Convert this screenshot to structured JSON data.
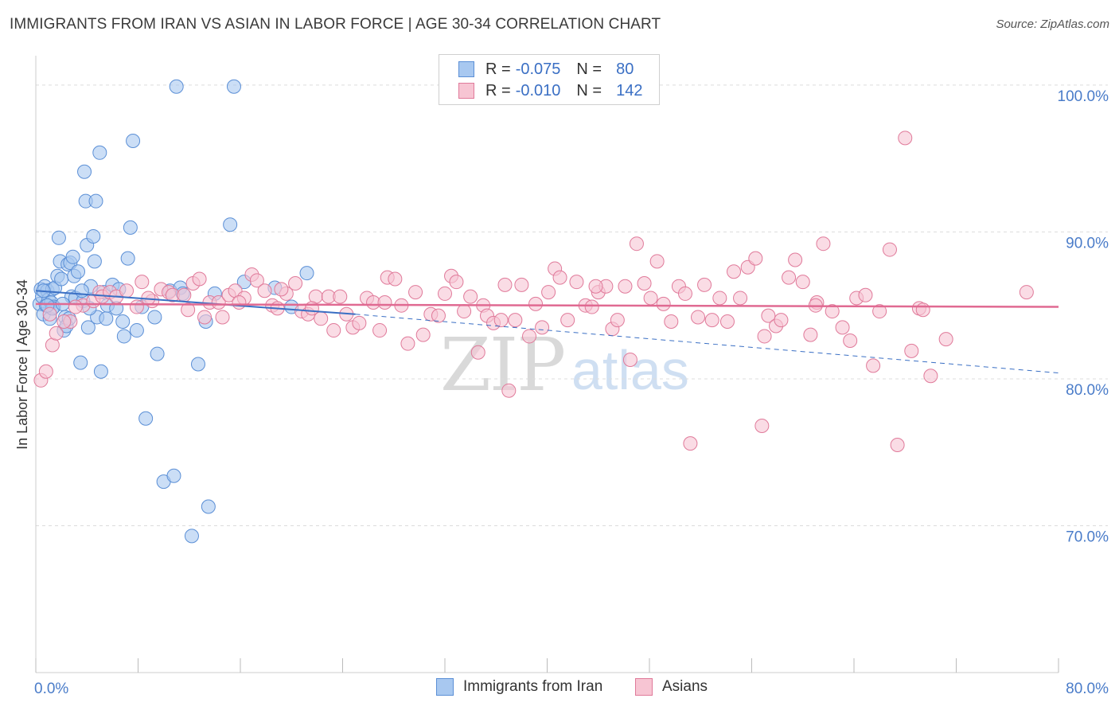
{
  "title": "IMMIGRANTS FROM IRAN VS ASIAN IN LABOR FORCE | AGE 30-34 CORRELATION CHART",
  "source": "Source: ZipAtlas.com",
  "watermark": {
    "zip": "ZIP",
    "atlas": "atlas"
  },
  "legend": {
    "rows": [
      {
        "r_label": "R =",
        "r_value": "-0.075",
        "n_label": "N =",
        "n_value": "80",
        "color": "#a8c8f0",
        "border": "#5b8fd6"
      },
      {
        "r_label": "R =",
        "r_value": "-0.010",
        "n_label": "N =",
        "n_value": "142",
        "color": "#f7c5d3",
        "border": "#e07a9a"
      }
    ]
  },
  "bottom_legend": [
    {
      "label": "Immigrants from Iran",
      "color": "#a8c8f0",
      "border": "#5b8fd6"
    },
    {
      "label": "Asians",
      "color": "#f7c5d3",
      "border": "#e07a9a"
    }
  ],
  "chart_data": {
    "type": "scatter",
    "title": "IMMIGRANTS FROM IRAN VS ASIAN IN LABOR FORCE | AGE 30-34 CORRELATION CHART",
    "xlabel": "",
    "ylabel": "In Labor Force | Age 30-34",
    "xlim": [
      0,
      80
    ],
    "ylim": [
      60,
      102
    ],
    "x_tick_labels": [
      "0.0%",
      "80.0%"
    ],
    "y_ticks": [
      70,
      80,
      90,
      100
    ],
    "y_tick_labels": [
      "70.0%",
      "80.0%",
      "90.0%",
      "100.0%"
    ],
    "series": [
      {
        "name": "Immigrants from Iran",
        "color": "#a8c8f0",
        "stroke": "#5b8fd6",
        "trend": {
          "x0": 0,
          "y0": 86.0,
          "x1": 25,
          "y1": 84.4,
          "dash_to_x": 80,
          "dash_to_y": 80.4,
          "color": "#3a6fc4"
        },
        "points": [
          [
            0.3,
            85.1
          ],
          [
            0.4,
            86.1
          ],
          [
            0.5,
            85.6
          ],
          [
            0.6,
            84.4
          ],
          [
            0.7,
            86.3
          ],
          [
            0.8,
            85.0
          ],
          [
            0.9,
            86.0
          ],
          [
            1.0,
            85.4
          ],
          [
            1.1,
            84.1
          ],
          [
            1.2,
            85.2
          ],
          [
            1.3,
            86.1
          ],
          [
            1.4,
            84.9
          ],
          [
            1.5,
            86.2
          ],
          [
            1.7,
            87.0
          ],
          [
            1.8,
            89.6
          ],
          [
            1.9,
            88.0
          ],
          [
            2.0,
            86.8
          ],
          [
            2.2,
            83.3
          ],
          [
            2.3,
            84.2
          ],
          [
            2.4,
            83.6
          ],
          [
            2.5,
            87.8
          ],
          [
            2.6,
            84.1
          ],
          [
            2.7,
            87.9
          ],
          [
            2.8,
            85.6
          ],
          [
            2.9,
            88.3
          ],
          [
            3.0,
            87.0
          ],
          [
            3.1,
            85.5
          ],
          [
            3.3,
            87.3
          ],
          [
            3.5,
            81.1
          ],
          [
            3.7,
            85.3
          ],
          [
            3.8,
            94.1
          ],
          [
            3.9,
            92.1
          ],
          [
            4.0,
            89.1
          ],
          [
            4.1,
            83.5
          ],
          [
            4.3,
            86.3
          ],
          [
            4.5,
            89.7
          ],
          [
            4.6,
            88.0
          ],
          [
            4.7,
            92.1
          ],
          [
            4.8,
            84.2
          ],
          [
            5.0,
            95.4
          ],
          [
            5.1,
            80.5
          ],
          [
            5.3,
            85.9
          ],
          [
            5.5,
            84.1
          ],
          [
            5.6,
            85.0
          ],
          [
            6.0,
            86.4
          ],
          [
            6.3,
            84.8
          ],
          [
            6.8,
            83.9
          ],
          [
            6.9,
            82.9
          ],
          [
            7.2,
            88.2
          ],
          [
            7.4,
            90.3
          ],
          [
            7.6,
            96.2
          ],
          [
            7.9,
            83.3
          ],
          [
            8.3,
            84.9
          ],
          [
            8.6,
            77.3
          ],
          [
            9.3,
            84.2
          ],
          [
            9.5,
            81.7
          ],
          [
            10.0,
            73.0
          ],
          [
            10.5,
            86.0
          ],
          [
            10.8,
            73.4
          ],
          [
            11.0,
            99.9
          ],
          [
            11.3,
            86.2
          ],
          [
            11.5,
            85.8
          ],
          [
            12.2,
            69.3
          ],
          [
            12.7,
            81.0
          ],
          [
            13.3,
            83.9
          ],
          [
            13.5,
            71.3
          ],
          [
            14.0,
            85.8
          ],
          [
            15.2,
            90.5
          ],
          [
            15.5,
            99.9
          ],
          [
            16.3,
            86.6
          ],
          [
            18.7,
            86.2
          ],
          [
            20.0,
            84.9
          ],
          [
            21.2,
            87.2
          ],
          [
            1.3,
            84.8
          ],
          [
            2.1,
            85.1
          ],
          [
            6.5,
            86.1
          ],
          [
            3.6,
            86.0
          ],
          [
            0.6,
            86.0
          ],
          [
            4.2,
            84.8
          ],
          [
            0.9,
            85.0
          ]
        ]
      },
      {
        "name": "Asians",
        "color": "#f7c5d3",
        "stroke": "#e07a9a",
        "trend": {
          "x0": 0,
          "y0": 85.1,
          "x1": 80,
          "y1": 84.9,
          "color": "#e06a92"
        },
        "points": [
          [
            0.4,
            79.9
          ],
          [
            0.8,
            80.5
          ],
          [
            1.1,
            84.4
          ],
          [
            1.3,
            82.3
          ],
          [
            1.6,
            83.1
          ],
          [
            2.7,
            83.9
          ],
          [
            3.7,
            85.0
          ],
          [
            4.5,
            85.3
          ],
          [
            5.0,
            85.9
          ],
          [
            5.2,
            85.6
          ],
          [
            5.8,
            85.9
          ],
          [
            6.3,
            85.6
          ],
          [
            7.1,
            86.0
          ],
          [
            7.9,
            84.9
          ],
          [
            8.3,
            86.6
          ],
          [
            9.1,
            85.3
          ],
          [
            9.8,
            86.1
          ],
          [
            10.4,
            85.9
          ],
          [
            10.7,
            85.7
          ],
          [
            11.6,
            85.7
          ],
          [
            11.9,
            84.7
          ],
          [
            12.3,
            86.5
          ],
          [
            12.8,
            86.8
          ],
          [
            13.2,
            84.2
          ],
          [
            13.6,
            85.2
          ],
          [
            14.3,
            85.2
          ],
          [
            14.6,
            84.2
          ],
          [
            15.1,
            85.7
          ],
          [
            15.6,
            86.0
          ],
          [
            16.3,
            85.5
          ],
          [
            16.9,
            87.1
          ],
          [
            17.3,
            86.7
          ],
          [
            17.9,
            86.0
          ],
          [
            18.5,
            85.0
          ],
          [
            18.9,
            84.8
          ],
          [
            19.6,
            85.8
          ],
          [
            20.3,
            86.5
          ],
          [
            20.8,
            84.6
          ],
          [
            21.3,
            84.4
          ],
          [
            21.9,
            85.6
          ],
          [
            22.3,
            84.1
          ],
          [
            22.9,
            85.6
          ],
          [
            23.3,
            83.3
          ],
          [
            23.8,
            85.6
          ],
          [
            24.3,
            84.4
          ],
          [
            24.8,
            83.5
          ],
          [
            25.3,
            83.8
          ],
          [
            25.9,
            85.5
          ],
          [
            26.4,
            85.2
          ],
          [
            26.9,
            83.3
          ],
          [
            27.5,
            86.9
          ],
          [
            28.1,
            86.8
          ],
          [
            28.6,
            85.0
          ],
          [
            29.1,
            82.4
          ],
          [
            29.7,
            85.9
          ],
          [
            30.3,
            83.0
          ],
          [
            30.9,
            84.4
          ],
          [
            31.5,
            84.3
          ],
          [
            32.0,
            85.8
          ],
          [
            32.5,
            87.0
          ],
          [
            32.9,
            86.6
          ],
          [
            33.5,
            84.6
          ],
          [
            34.0,
            85.6
          ],
          [
            34.6,
            81.8
          ],
          [
            35.0,
            85.0
          ],
          [
            35.3,
            84.3
          ],
          [
            35.8,
            83.8
          ],
          [
            36.4,
            84.0
          ],
          [
            37.0,
            79.2
          ],
          [
            37.5,
            84.0
          ],
          [
            38.0,
            86.4
          ],
          [
            38.6,
            82.9
          ],
          [
            39.1,
            85.1
          ],
          [
            39.6,
            83.5
          ],
          [
            40.1,
            85.9
          ],
          [
            40.6,
            87.5
          ],
          [
            41.0,
            86.9
          ],
          [
            41.6,
            84.0
          ],
          [
            42.3,
            86.6
          ],
          [
            43.0,
            85.0
          ],
          [
            43.5,
            84.9
          ],
          [
            44.0,
            85.9
          ],
          [
            44.6,
            86.3
          ],
          [
            45.1,
            83.4
          ],
          [
            45.5,
            84.0
          ],
          [
            46.1,
            86.3
          ],
          [
            46.5,
            81.3
          ],
          [
            47.0,
            89.2
          ],
          [
            47.6,
            86.5
          ],
          [
            48.1,
            85.5
          ],
          [
            48.6,
            88.0
          ],
          [
            49.1,
            85.1
          ],
          [
            49.7,
            83.9
          ],
          [
            50.3,
            86.3
          ],
          [
            50.8,
            85.8
          ],
          [
            51.2,
            75.6
          ],
          [
            51.8,
            84.2
          ],
          [
            52.3,
            86.4
          ],
          [
            52.9,
            84.0
          ],
          [
            53.5,
            85.5
          ],
          [
            54.1,
            83.9
          ],
          [
            54.6,
            87.3
          ],
          [
            55.1,
            85.5
          ],
          [
            55.7,
            87.6
          ],
          [
            56.3,
            88.2
          ],
          [
            56.8,
            76.8
          ],
          [
            57.3,
            84.3
          ],
          [
            57.9,
            83.6
          ],
          [
            58.3,
            84.0
          ],
          [
            58.9,
            86.9
          ],
          [
            59.4,
            88.1
          ],
          [
            60.0,
            86.6
          ],
          [
            60.6,
            83.0
          ],
          [
            61.1,
            85.2
          ],
          [
            61.6,
            89.2
          ],
          [
            62.3,
            84.6
          ],
          [
            63.1,
            83.5
          ],
          [
            63.7,
            82.6
          ],
          [
            64.2,
            85.5
          ],
          [
            64.9,
            85.7
          ],
          [
            65.5,
            80.9
          ],
          [
            66.0,
            84.6
          ],
          [
            66.8,
            88.8
          ],
          [
            67.4,
            75.5
          ],
          [
            68.0,
            96.4
          ],
          [
            68.5,
            81.9
          ],
          [
            69.1,
            84.8
          ],
          [
            70.0,
            80.2
          ],
          [
            71.2,
            82.7
          ],
          [
            77.5,
            85.9
          ],
          [
            57.0,
            82.9
          ],
          [
            61.0,
            85.0
          ],
          [
            43.8,
            86.3
          ],
          [
            36.7,
            86.4
          ],
          [
            27.3,
            85.2
          ],
          [
            19.2,
            86.1
          ],
          [
            8.8,
            85.5
          ],
          [
            3.1,
            84.9
          ],
          [
            69.4,
            84.7
          ],
          [
            15.9,
            85.2
          ],
          [
            21.6,
            84.8
          ],
          [
            2.2,
            83.9
          ]
        ]
      }
    ]
  }
}
